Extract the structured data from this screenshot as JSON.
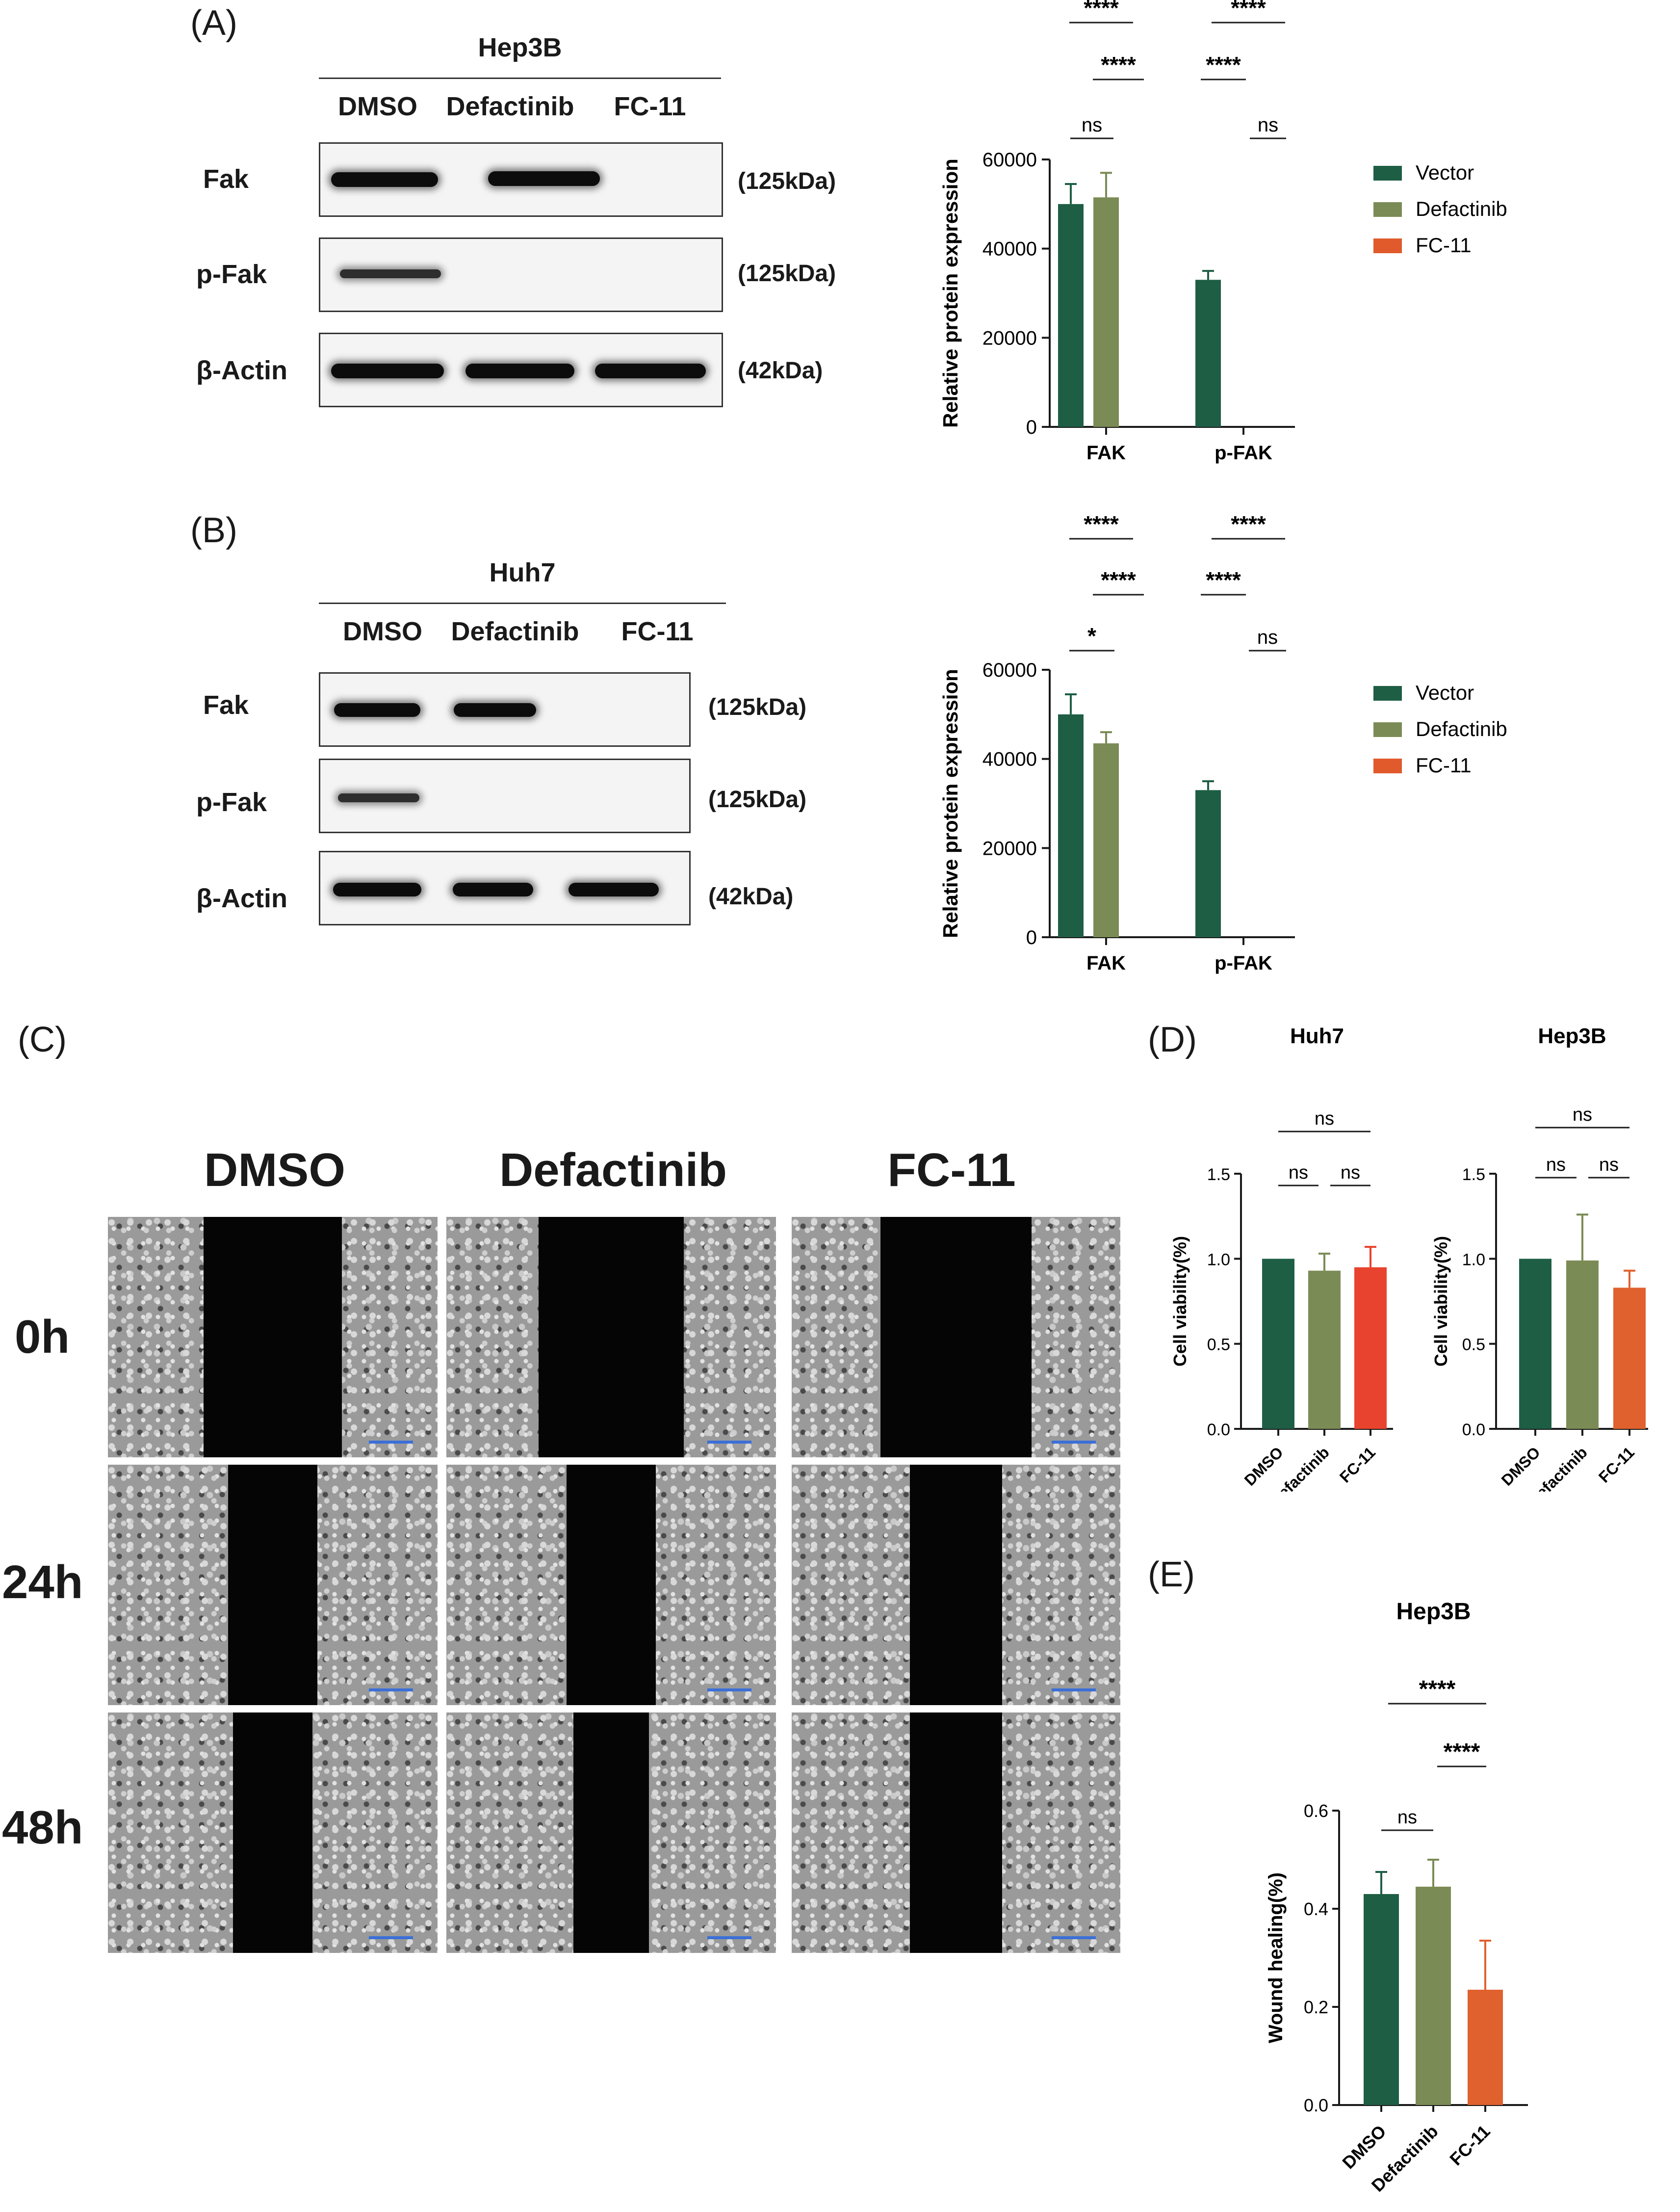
{
  "panels": {
    "a": "(A)",
    "b": "(B)",
    "c": "(C)",
    "d": "(D)",
    "e": "(E)"
  },
  "blot_a": {
    "cell_line": "Hep3B",
    "lanes": [
      "DMSO",
      "Defactinib",
      "FC-11"
    ],
    "rows": [
      {
        "label": "Fak",
        "kda": "(125kDa)"
      },
      {
        "label": "p-Fak",
        "kda": "(125kDa)"
      },
      {
        "label": "β-Actin",
        "kda": "(42kDa)"
      }
    ]
  },
  "blot_b": {
    "cell_line": "Huh7",
    "lanes": [
      "DMSO",
      "Defactinib",
      "FC-11"
    ],
    "rows": [
      {
        "label": "Fak",
        "kda": "(125kDa)"
      },
      {
        "label": "p-Fak",
        "kda": "(125kDa)"
      },
      {
        "label": "β-Actin",
        "kda": "(42kDa)"
      }
    ]
  },
  "wound": {
    "columns": [
      "DMSO",
      "Defactinib",
      "FC-11"
    ],
    "rows": [
      "0h",
      "24h",
      "48h"
    ],
    "gap_fraction": [
      [
        0.42,
        0.44,
        0.46
      ],
      [
        0.27,
        0.27,
        0.28
      ],
      [
        0.24,
        0.23,
        0.28
      ]
    ]
  },
  "colors": {
    "vector": "#1e5e44",
    "defactinib": "#7b8b55",
    "fc11_a": "#e05a2b",
    "fc11_d": "#e8432e",
    "fc11_e": "#e0612e",
    "axis": "#1a1a1a"
  },
  "chart_data": [
    {
      "id": "chart-a",
      "type": "bar",
      "categories": [
        "FAK",
        "p-FAK"
      ],
      "series": [
        {
          "name": "Vector",
          "values": [
            50000,
            33000
          ],
          "errors": [
            4500,
            2000
          ]
        },
        {
          "name": "Defactinib",
          "values": [
            51500,
            0
          ],
          "errors": [
            5500,
            0
          ]
        },
        {
          "name": "FC-11",
          "values": [
            0,
            0
          ],
          "errors": [
            0,
            0
          ]
        }
      ],
      "ylabel": "Relative protein expression",
      "ylim": [
        0,
        60000
      ],
      "yticks": [
        "0",
        "20000",
        "40000",
        "60000"
      ],
      "significance": [
        "****",
        "****",
        "****",
        "****",
        "ns",
        "ns"
      ],
      "legend": [
        "Vector",
        "Defactinib",
        "FC-11"
      ]
    },
    {
      "id": "chart-b",
      "type": "bar",
      "categories": [
        "FAK",
        "p-FAK"
      ],
      "series": [
        {
          "name": "Vector",
          "values": [
            50000,
            33000
          ],
          "errors": [
            4500,
            2000
          ]
        },
        {
          "name": "Defactinib",
          "values": [
            43500,
            0
          ],
          "errors": [
            2500,
            0
          ]
        },
        {
          "name": "FC-11",
          "values": [
            0,
            0
          ],
          "errors": [
            0,
            0
          ]
        }
      ],
      "ylabel": "Relative protein expression",
      "ylim": [
        0,
        60000
      ],
      "yticks": [
        "0",
        "20000",
        "40000",
        "60000"
      ],
      "significance": [
        "****",
        "****",
        "****",
        "****",
        "*",
        "ns"
      ],
      "legend": [
        "Vector",
        "Defactinib",
        "FC-11"
      ]
    },
    {
      "id": "chart-d1",
      "type": "bar",
      "title": "Huh7",
      "categories": [
        "DMSO",
        "Defactinib",
        "FC-11"
      ],
      "values": [
        1.0,
        0.93,
        0.95
      ],
      "errors": [
        0,
        0.1,
        0.12
      ],
      "ylabel": "Cell viability(%)",
      "ylim": [
        0,
        1.5
      ],
      "yticks": [
        "0.0",
        "0.5",
        "1.0",
        "1.5"
      ],
      "significance": [
        "ns",
        "ns",
        "ns"
      ]
    },
    {
      "id": "chart-d2",
      "type": "bar",
      "title": "Hep3B",
      "categories": [
        "DMSO",
        "Defactinib",
        "FC-11"
      ],
      "values": [
        1.0,
        0.99,
        0.83
      ],
      "errors": [
        0,
        0.27,
        0.1
      ],
      "ylabel": "Cell viability(%)",
      "ylim": [
        0,
        1.5
      ],
      "yticks": [
        "0.0",
        "0.5",
        "1.0",
        "1.5"
      ],
      "significance": [
        "ns",
        "ns",
        "ns"
      ]
    },
    {
      "id": "chart-e",
      "type": "bar",
      "title": "Hep3B",
      "categories": [
        "DMSO",
        "Defactinib",
        "FC-11"
      ],
      "values": [
        0.43,
        0.445,
        0.235
      ],
      "errors": [
        0.045,
        0.055,
        0.1
      ],
      "ylabel": "Wound healing(%)",
      "ylim": [
        0,
        0.6
      ],
      "yticks": [
        "0.0",
        "0.2",
        "0.4",
        "0.6"
      ],
      "significance": [
        "****",
        "****",
        "ns"
      ]
    }
  ]
}
